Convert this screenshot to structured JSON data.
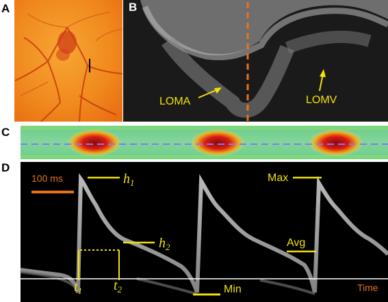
{
  "panels": {
    "a": "A",
    "b": "B",
    "c": "C",
    "d": "D"
  },
  "panel_b": {
    "label_left": "LOMA",
    "label_right": "LOMV"
  },
  "panel_d": {
    "scale_bar": "100 ms",
    "h1": "h",
    "h1_sub": "1",
    "h2": "h",
    "h2_sub": "2",
    "t1": "t",
    "t1_sub": "1",
    "t2": "t",
    "t2_sub": "2",
    "max": "Max",
    "avg": "Avg",
    "min": "Min",
    "time": "Time"
  },
  "colors": {
    "annotation": "#f2e10a",
    "accent": "#e8731c",
    "guide": "#7a7bff"
  }
}
